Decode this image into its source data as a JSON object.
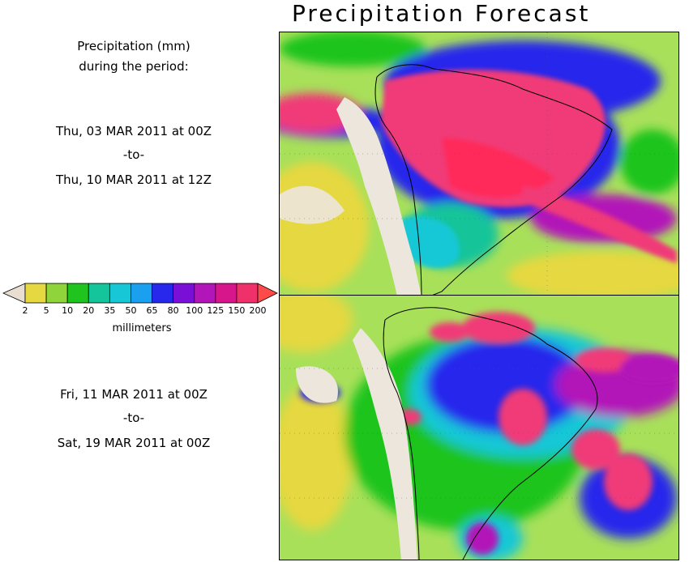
{
  "title": "Precipitation Forecast",
  "header": {
    "line1": "Precipitation (mm)",
    "line2": "during the period:"
  },
  "period1": {
    "start": "Thu, 03 MAR 2011 at 00Z",
    "sep": "-to-",
    "end": "Thu, 10 MAR 2011 at 12Z"
  },
  "period2": {
    "start": "Fri, 11 MAR 2011 at 00Z",
    "sep": "-to-",
    "end": "Sat, 19 MAR 2011 at 00Z"
  },
  "legend": {
    "ticks": [
      "2",
      "5",
      "10",
      "20",
      "35",
      "50",
      "65",
      "80",
      "100",
      "125",
      "150",
      "200"
    ],
    "unit": "millimeters",
    "colors": [
      "#e8dfd2",
      "#e6d840",
      "#8ed43a",
      "#1fc41f",
      "#14c49a",
      "#17c7d6",
      "#1ba0f0",
      "#2828ec",
      "#7a10d8",
      "#b216b8",
      "#d8168c",
      "#f0306a",
      "#ff4a4a"
    ]
  },
  "colors": {
    "ocean": "#a8e05a",
    "land_dry": "#ece6dc",
    "heavy": "#f03a78",
    "very_heavy": "#ff2a5a"
  }
}
